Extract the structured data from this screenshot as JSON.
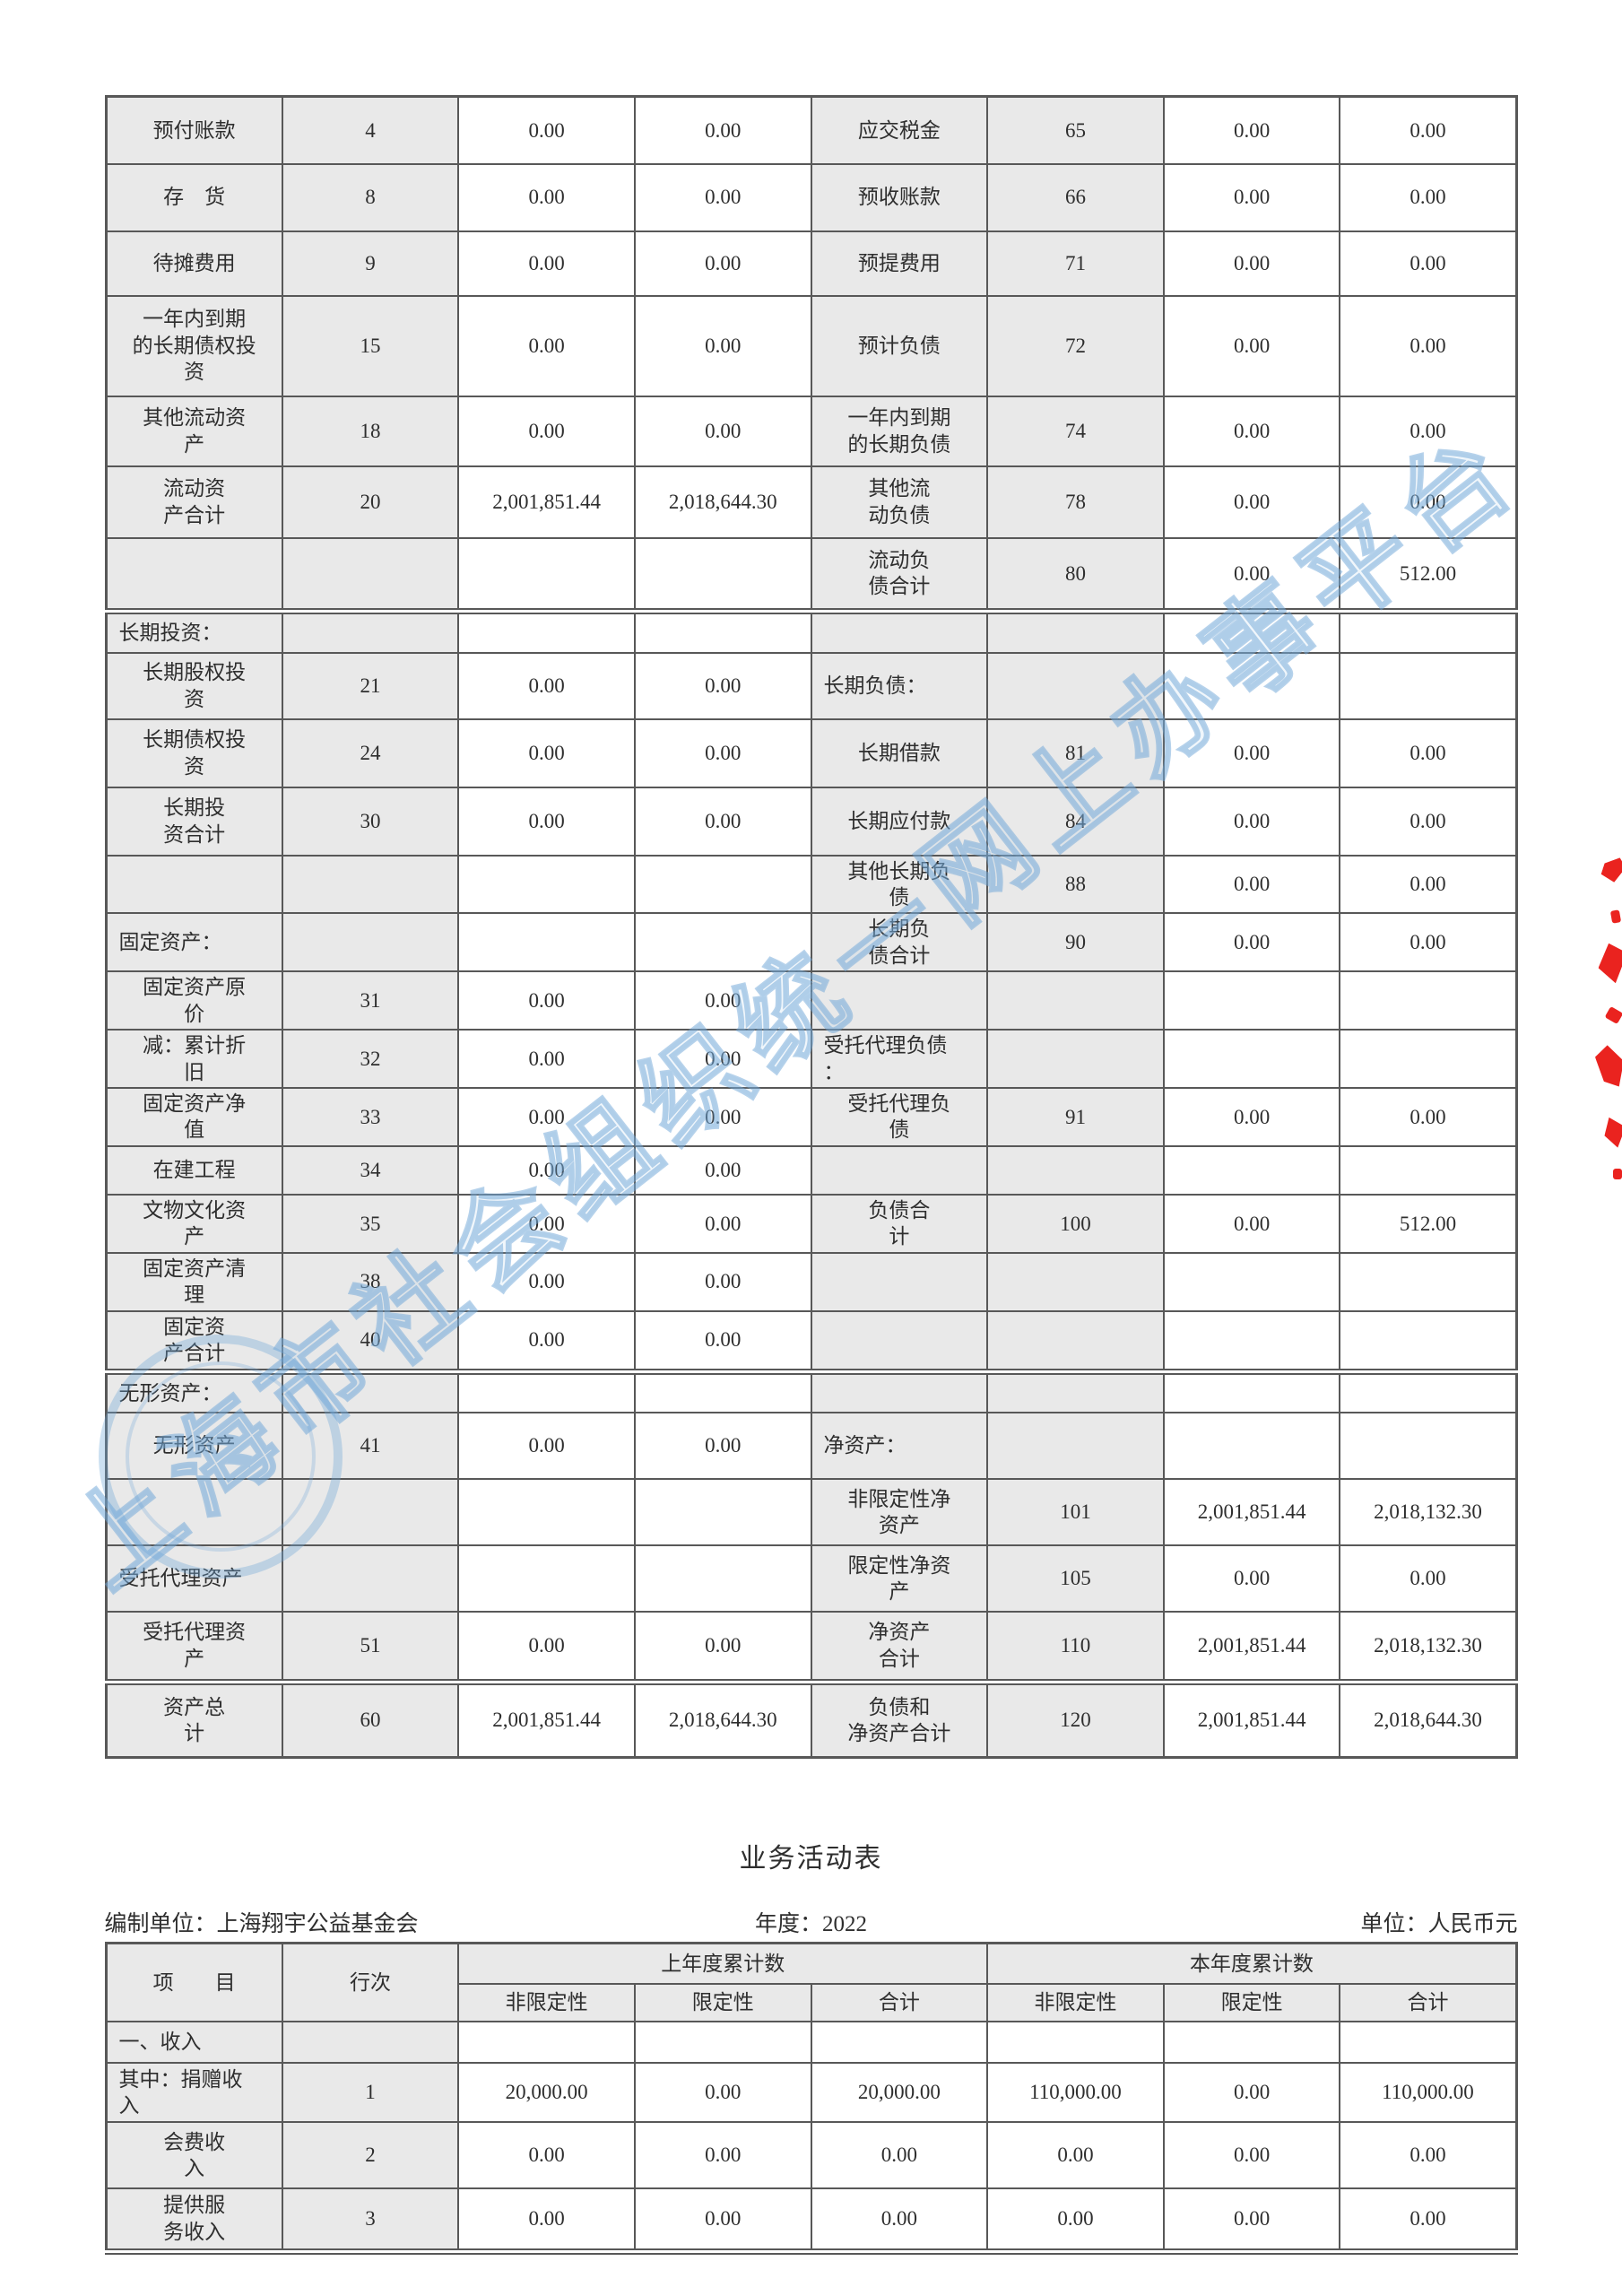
{
  "colors": {
    "watermark_blue": "#6ea5d7",
    "seal_red": "#e8100c",
    "cell_gray": "#e9e9e9",
    "border_gray": "#585858"
  },
  "watermark": {
    "text": "上海市社会组织统一网上办事平台"
  },
  "balance_sheet": {
    "rows": [
      [
        "预付账款",
        "4",
        "0.00",
        "0.00",
        "应交税金",
        "65",
        "0.00",
        "0.00"
      ],
      [
        "存　货",
        "8",
        "0.00",
        "0.00",
        "预收账款",
        "66",
        "0.00",
        "0.00"
      ],
      [
        "待摊费用",
        "9",
        "0.00",
        "0.00",
        "预提费用",
        "71",
        "0.00",
        "0.00"
      ],
      [
        "一年内到期\n的长期债权投\n资",
        "15",
        "0.00",
        "0.00",
        "预计负债",
        "72",
        "0.00",
        "0.00"
      ],
      [
        "其他流动资\n产",
        "18",
        "0.00",
        "0.00",
        "一年内到期\n的长期负债",
        "74",
        "0.00",
        "0.00"
      ],
      [
        "流动资\n产合计",
        "20",
        "2,001,851.44",
        "2,018,644.30",
        "其他流\n动负债",
        "78",
        "0.00",
        "0.00"
      ],
      [
        "",
        "",
        "",
        "",
        "流动负\n债合计",
        "80",
        "0.00",
        "512.00"
      ],
      [
        "长期投资：",
        "",
        "",
        "",
        "",
        "",
        "",
        ""
      ],
      [
        "长期股权投\n资",
        "21",
        "0.00",
        "0.00",
        "长期负债：",
        "",
        "",
        ""
      ],
      [
        "长期债权投\n资",
        "24",
        "0.00",
        "0.00",
        "长期借款",
        "81",
        "0.00",
        "0.00"
      ],
      [
        "长期投\n资合计",
        "30",
        "0.00",
        "0.00",
        "长期应付款",
        "84",
        "0.00",
        "0.00"
      ],
      [
        "",
        "",
        "",
        "",
        "其他长期负\n债",
        "88",
        "0.00",
        "0.00"
      ],
      [
        "固定资产：",
        "",
        "",
        "",
        "长期负\n债合计",
        "90",
        "0.00",
        "0.00"
      ],
      [
        "固定资产原\n价",
        "31",
        "0.00",
        "0.00",
        "",
        "",
        "",
        ""
      ],
      [
        "减：累计折\n旧",
        "32",
        "0.00",
        "0.00",
        "受托代理负债\n：",
        "",
        "",
        ""
      ],
      [
        "固定资产净\n值",
        "33",
        "0.00",
        "0.00",
        "受托代理负\n债",
        "91",
        "0.00",
        "0.00"
      ],
      [
        "在建工程",
        "34",
        "0.00",
        "0.00",
        "",
        "",
        "",
        ""
      ],
      [
        "文物文化资\n产",
        "35",
        "0.00",
        "0.00",
        "负债合\n计",
        "100",
        "0.00",
        "512.00"
      ],
      [
        "固定资产清\n理",
        "38",
        "0.00",
        "0.00",
        "",
        "",
        "",
        ""
      ],
      [
        "固定资\n产合计",
        "40",
        "0.00",
        "0.00",
        "",
        "",
        "",
        ""
      ],
      [
        "无形资产：",
        "",
        "",
        "",
        "",
        "",
        "",
        ""
      ],
      [
        "无形资产",
        "41",
        "0.00",
        "0.00",
        "净资产：",
        "",
        "",
        ""
      ],
      [
        "",
        "",
        "",
        "",
        "非限定性净\n资产",
        "101",
        "2,001,851.44",
        "2,018,132.30"
      ],
      [
        "受托代理资产",
        "",
        "",
        "",
        "限定性净资\n产",
        "105",
        "0.00",
        "0.00"
      ],
      [
        "受托代理资\n产",
        "51",
        "0.00",
        "0.00",
        "净资产\n合计",
        "110",
        "2,001,851.44",
        "2,018,132.30"
      ],
      [
        "资产总\n计",
        "60",
        "2,001,851.44",
        "2,018,644.30",
        "负债和\n净资产合计",
        "120",
        "2,001,851.44",
        "2,018,644.30"
      ]
    ]
  },
  "activity_table": {
    "title": "业务活动表",
    "prepared_by": "编制单位：上海翔宇公益基金会",
    "year": "年度：2022",
    "unit": "单位：人民币元",
    "header": {
      "item": "项　　目",
      "line_no": "行次",
      "prev_year": "上年度累计数",
      "curr_year": "本年度累计数",
      "sub": [
        "非限定性",
        "限定性",
        "合计",
        "非限定性",
        "限定性",
        "合计"
      ]
    },
    "rows": [
      [
        "一、收入",
        "",
        "",
        "",
        "",
        "",
        "",
        ""
      ],
      [
        "其中：捐赠收\n入",
        "1",
        "20,000.00",
        "0.00",
        "20,000.00",
        "110,000.00",
        "0.00",
        "110,000.00"
      ],
      [
        "会费收\n入",
        "2",
        "0.00",
        "0.00",
        "0.00",
        "0.00",
        "0.00",
        "0.00"
      ],
      [
        "提供服\n务收入",
        "3",
        "0.00",
        "0.00",
        "0.00",
        "0.00",
        "0.00",
        "0.00"
      ]
    ]
  }
}
